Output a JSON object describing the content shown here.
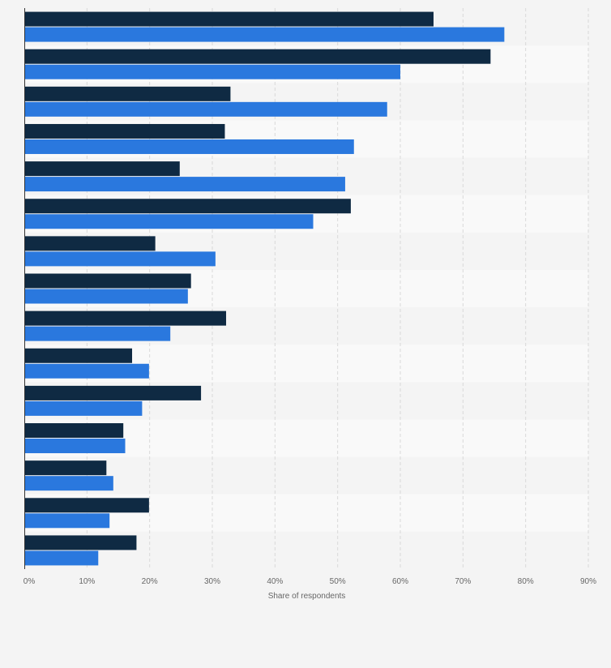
{
  "chart_data": {
    "type": "bar",
    "orientation": "horizontal",
    "title": "",
    "xlabel": "Share of respondents",
    "ylabel": "",
    "xlim": [
      0,
      90
    ],
    "x_ticks": [
      0,
      10,
      20,
      30,
      40,
      50,
      60,
      70,
      80,
      90
    ],
    "x_tick_labels": [
      "0%",
      "10%",
      "20%",
      "30%",
      "40%",
      "50%",
      "60%",
      "70%",
      "80%",
      "90%"
    ],
    "grid": true,
    "legend": "none",
    "categories": [
      "",
      "",
      "",
      "",
      "",
      "",
      "",
      "",
      "",
      "",
      "",
      "",
      "",
      "",
      ""
    ],
    "series": [
      {
        "color": "#0f2a43",
        "values": [
          65.3,
          74.4,
          32.9,
          32.0,
          24.8,
          52.1,
          20.9,
          26.6,
          32.2,
          17.2,
          28.2,
          15.8,
          13.1,
          19.9,
          17.9
        ]
      },
      {
        "color": "#2a78de",
        "values": [
          76.6,
          60.0,
          57.9,
          52.6,
          51.2,
          46.1,
          30.5,
          26.1,
          23.3,
          19.9,
          18.8,
          16.1,
          14.2,
          13.6,
          11.8
        ]
      }
    ]
  }
}
